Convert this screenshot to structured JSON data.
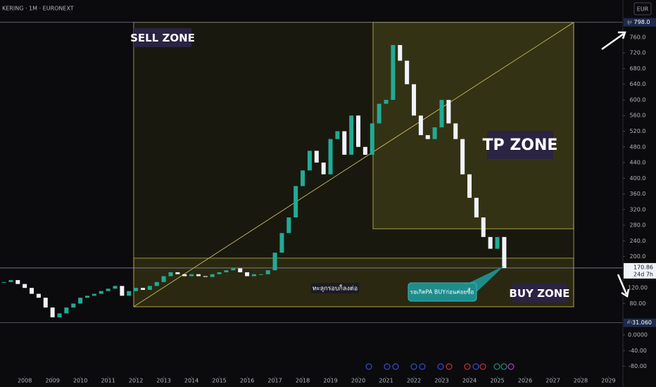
{
  "chart_data": {
    "type": "candlestick",
    "title": "KERING · 1M · EURONEXT",
    "currency": "EUR",
    "up_color": "#22ab94",
    "down_color": "#f0f3fa",
    "x": [
      2007.25,
      2007.5,
      2007.75,
      2008.0,
      2008.25,
      2008.5,
      2008.75,
      2009.0,
      2009.25,
      2009.5,
      2009.75,
      2010.0,
      2010.25,
      2010.5,
      2010.75,
      2011.0,
      2011.25,
      2011.5,
      2011.75,
      2012.0,
      2012.25,
      2012.5,
      2012.75,
      2013.0,
      2013.25,
      2013.5,
      2013.75,
      2014.0,
      2014.25,
      2014.5,
      2014.75,
      2015.0,
      2015.25,
      2015.5,
      2015.75,
      2016.0,
      2016.25,
      2016.5,
      2016.75,
      2017.0,
      2017.25,
      2017.5,
      2017.75,
      2018.0,
      2018.25,
      2018.5,
      2018.75,
      2019.0,
      2019.25,
      2019.5,
      2019.75,
      2020.0,
      2020.25,
      2020.5,
      2020.75,
      2021.0,
      2021.25,
      2021.5,
      2021.75,
      2022.0,
      2022.25,
      2022.5,
      2022.75,
      2023.0,
      2023.25,
      2023.5,
      2023.75,
      2024.0,
      2024.25,
      2024.5,
      2024.75,
      2025.0,
      2025.25
    ],
    "values": [
      135,
      140,
      130,
      120,
      105,
      95,
      70,
      45,
      55,
      70,
      80,
      95,
      100,
      105,
      112,
      118,
      125,
      100,
      112,
      120,
      115,
      125,
      135,
      150,
      160,
      155,
      150,
      155,
      150,
      148,
      155,
      160,
      165,
      170,
      160,
      150,
      155,
      155,
      165,
      210,
      260,
      300,
      380,
      420,
      470,
      440,
      410,
      500,
      520,
      460,
      560,
      480,
      460,
      540,
      590,
      600,
      740,
      700,
      640,
      560,
      510,
      500,
      530,
      600,
      540,
      500,
      410,
      350,
      300,
      250,
      220,
      250,
      170.86
    ],
    "xlim": [
      2007.11,
      2029.52
    ],
    "xticks": [
      2008,
      2009,
      2010,
      2011,
      2012,
      2013,
      2014,
      2015,
      2016,
      2017,
      2018,
      2019,
      2020,
      2021,
      2022,
      2023,
      2024,
      2025,
      2026,
      2027,
      2028,
      2029
    ],
    "ylim": [
      -93.4,
      855
    ],
    "yticks": [
      {
        "value": -80,
        "label": "-80.00"
      },
      {
        "value": -40,
        "label": "-40.00"
      },
      {
        "value": 0,
        "label": "0.0000"
      },
      {
        "value": 80,
        "label": "80.00"
      },
      {
        "value": 120,
        "label": "120.00"
      },
      {
        "value": 200,
        "label": "200.0"
      },
      {
        "value": 240,
        "label": "240.0"
      },
      {
        "value": 280,
        "label": "280.0"
      },
      {
        "value": 320,
        "label": "320.0"
      },
      {
        "value": 360,
        "label": "360.0"
      },
      {
        "value": 400,
        "label": "400.0"
      },
      {
        "value": 440,
        "label": "440.0"
      },
      {
        "value": 480,
        "label": "480.0"
      },
      {
        "value": 520,
        "label": "520.0"
      },
      {
        "value": 560,
        "label": "560.0"
      },
      {
        "value": 600,
        "label": "600.0"
      },
      {
        "value": 640,
        "label": "640.0"
      },
      {
        "value": 680,
        "label": "680.0"
      },
      {
        "value": 720,
        "label": "720.0"
      },
      {
        "value": 760,
        "label": "760.0"
      }
    ],
    "high": {
      "tag": "สูง",
      "value": 798.0,
      "label": "798.0"
    },
    "low": {
      "tag": "ต่ำ",
      "value": 31.06,
      "label": "31.060"
    },
    "last": {
      "value": 170.86,
      "label": "170.86",
      "countdown": "24d 7h"
    },
    "zones": [
      {
        "label": "SELL ZONE",
        "from": 2011.92,
        "to": 2027.75,
        "top": 798,
        "bottom": 72
      },
      {
        "label": "TP ZONE",
        "from": 2020.53,
        "to": 2027.75,
        "top": 798,
        "bottom": 271
      },
      {
        "label": "BUY ZONE",
        "from": 2011.92,
        "to": 2027.75,
        "top": 196,
        "bottom": 72
      }
    ],
    "trend_line": {
      "x": [
        2011.92,
        2027.75
      ],
      "values": [
        72,
        798
      ]
    },
    "annotations": [
      "ทะลุกรอบก็ลงต่อ",
      "รอเกิดPA BUYก่อนค่อยซื้อ"
    ]
  }
}
